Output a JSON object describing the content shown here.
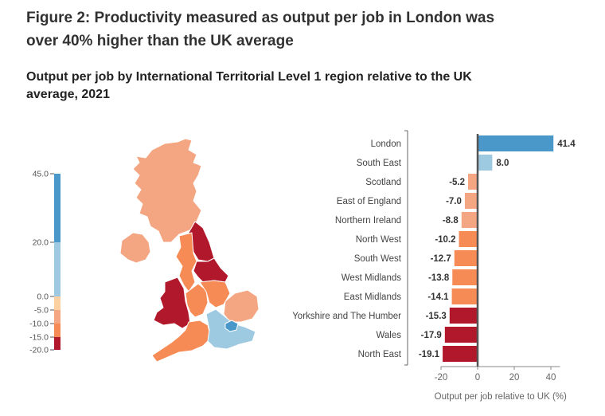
{
  "figure": {
    "title": "Figure 2: Productivity measured as output per job in London was over 40% higher than the UK average",
    "subtitle": "Output per job by International Territorial Level 1 region relative to the UK average, 2021"
  },
  "legend": {
    "bands": [
      {
        "from": 20,
        "to": 45,
        "color": "#4a97c9"
      },
      {
        "from": 0,
        "to": 20,
        "color": "#9ecae1"
      },
      {
        "from": -5,
        "to": 0,
        "color": "#fdd0a2"
      },
      {
        "from": -10,
        "to": -5,
        "color": "#f4a582"
      },
      {
        "from": -15,
        "to": -10,
        "color": "#f78b56"
      },
      {
        "from": -20,
        "to": -15,
        "color": "#b2182b"
      }
    ],
    "ticks": [
      "45.0",
      "20.0",
      "0.0",
      "-5.0",
      "-10.0",
      "-15.0",
      "-20.0"
    ]
  },
  "map": {
    "regions": [
      {
        "name": "Scotland",
        "color": "#f4a582"
      },
      {
        "name": "Northern Ireland",
        "color": "#f4a582"
      },
      {
        "name": "North East",
        "color": "#b2182b"
      },
      {
        "name": "North West",
        "color": "#f78b56"
      },
      {
        "name": "Yorkshire and The Humber",
        "color": "#b2182b"
      },
      {
        "name": "Wales",
        "color": "#b2182b"
      },
      {
        "name": "West Midlands",
        "color": "#f78b56"
      },
      {
        "name": "East Midlands",
        "color": "#f78b56"
      },
      {
        "name": "East of England",
        "color": "#f4a582"
      },
      {
        "name": "South West",
        "color": "#f78b56"
      },
      {
        "name": "South East",
        "color": "#9ecae1"
      },
      {
        "name": "London",
        "color": "#4a97c9"
      }
    ]
  },
  "chart_data": {
    "type": "bar",
    "orientation": "horizontal",
    "categories": [
      "London",
      "South East",
      "Scotland",
      "East of England",
      "Northern Ireland",
      "North West",
      "South West",
      "West Midlands",
      "East Midlands",
      "Yorkshire and The Humber",
      "Wales",
      "North East"
    ],
    "values": [
      41.4,
      8.0,
      -5.2,
      -7.0,
      -8.8,
      -10.2,
      -12.7,
      -13.8,
      -14.1,
      -15.3,
      -17.9,
      -19.1
    ],
    "value_labels": [
      "41.4",
      "8.0",
      "-5.2",
      "-7.0",
      "-8.8",
      "-10.2",
      "-12.7",
      "-13.8",
      "-14.1",
      "-15.3",
      "-17.9",
      "-19.1"
    ],
    "colors": [
      "#4a97c9",
      "#9ecae1",
      "#f4a582",
      "#f4a582",
      "#f4a582",
      "#f78b56",
      "#f78b56",
      "#f78b56",
      "#f78b56",
      "#b2182b",
      "#b2182b",
      "#b2182b"
    ],
    "xlim": [
      -20,
      45
    ],
    "xticks": [
      -20,
      0,
      20,
      40
    ],
    "xtick_labels": [
      "-20",
      "0",
      "20",
      "40"
    ],
    "xlabel": "Output per job relative to UK (%)",
    "ylabel": ""
  }
}
